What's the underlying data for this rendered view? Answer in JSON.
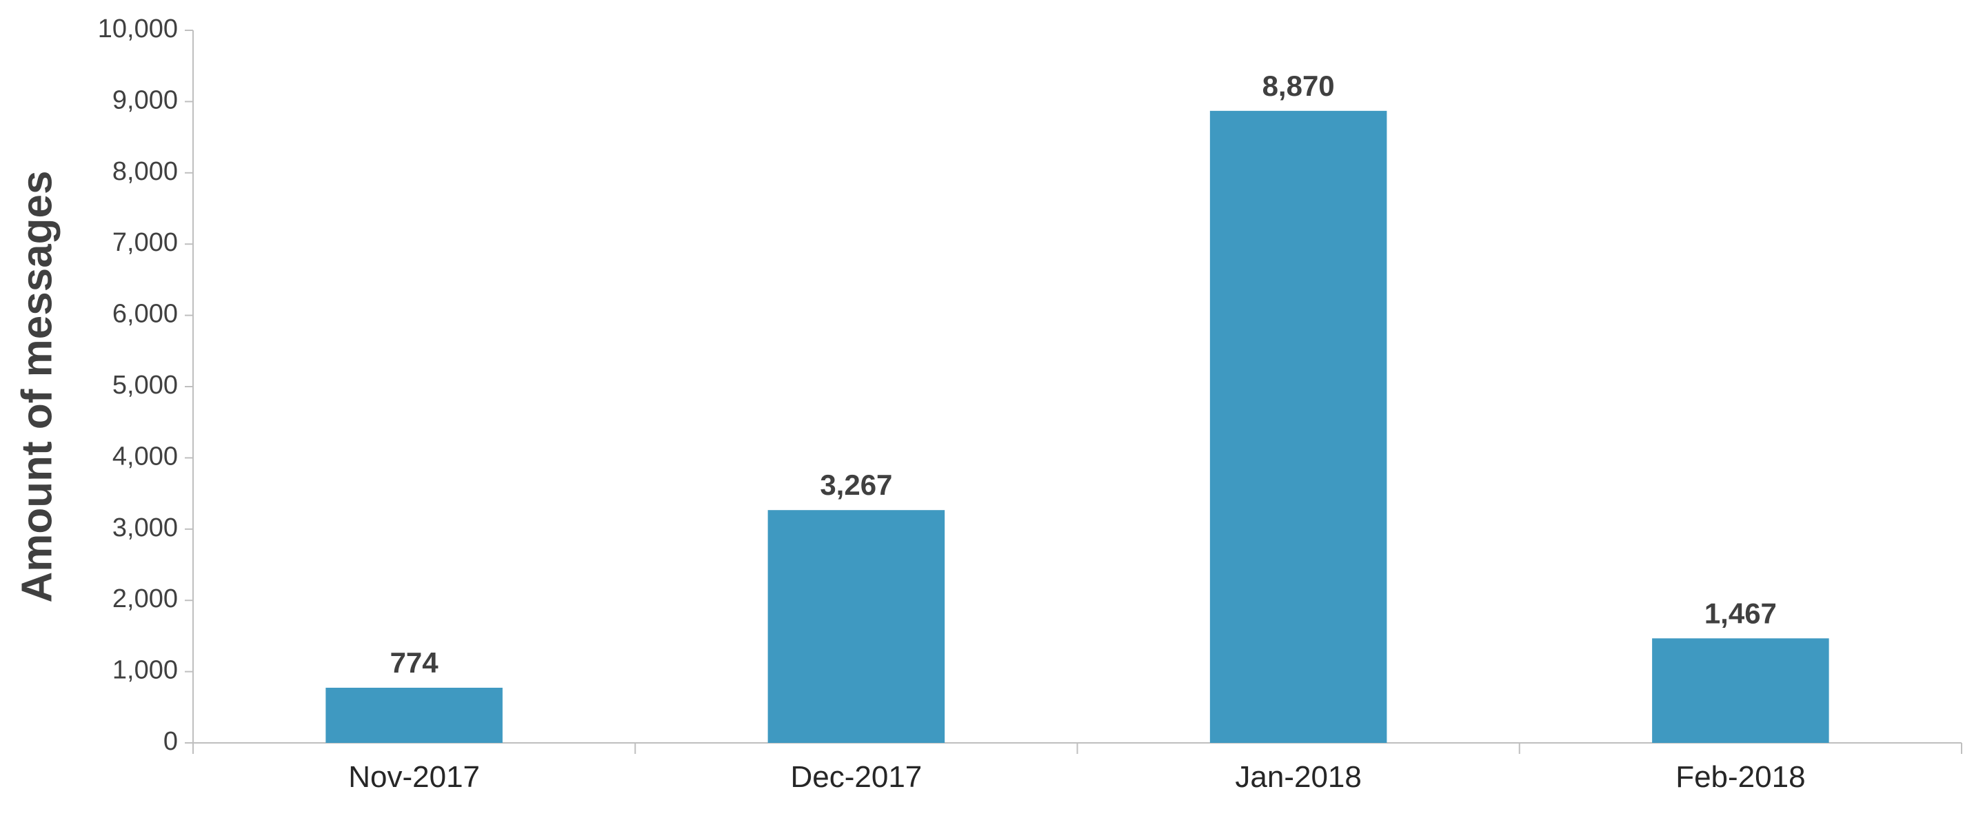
{
  "chart_data": {
    "type": "bar",
    "title": "",
    "xlabel": "",
    "ylabel": "Amount of messages",
    "categories": [
      "Nov-2017",
      "Dec-2017",
      "Jan-2018",
      "Feb-2018"
    ],
    "values": [
      774,
      3267,
      8870,
      1467
    ],
    "value_labels": [
      "774",
      "3,267",
      "8,870",
      "1,467"
    ],
    "ylim": [
      0,
      10000
    ],
    "yticks": [
      0,
      1000,
      2000,
      3000,
      4000,
      5000,
      6000,
      7000,
      8000,
      9000,
      10000
    ],
    "ytick_labels": [
      "0",
      "1,000",
      "2,000",
      "3,000",
      "4,000",
      "5,000",
      "6,000",
      "7,000",
      "8,000",
      "9,000",
      "10,000"
    ],
    "grid": false,
    "legend": "none",
    "bar_color": "#3F99C1",
    "axis_color": "#BFBFBF",
    "text_color": "#404040"
  }
}
